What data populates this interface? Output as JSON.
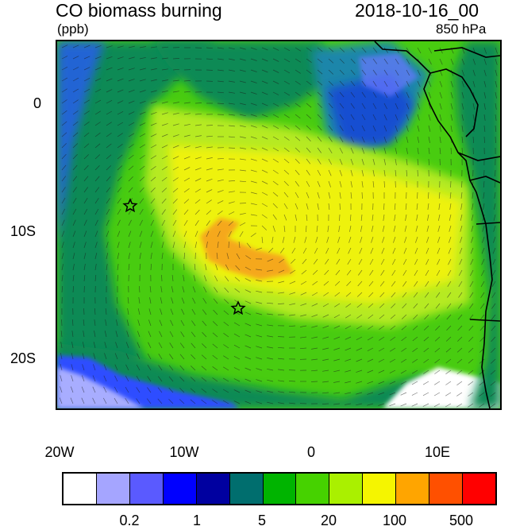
{
  "header": {
    "title": "CO biomass burning",
    "units": "(ppb)",
    "datetime": "2018-10-16_00",
    "level": "850 hPa"
  },
  "axes": {
    "y_ticks": [
      "0",
      "10S",
      "20S"
    ],
    "x_ticks": [
      "20W",
      "10W",
      "0",
      "10E"
    ]
  },
  "map": {
    "region": "South Atlantic / Southwest Africa",
    "markers": [
      {
        "type": "star",
        "lon": -14.4,
        "lat": -7.9
      },
      {
        "type": "star",
        "lon": -5.7,
        "lat": -15.9
      }
    ]
  },
  "colorbar": {
    "colors": [
      "#ffffff",
      "#a5a5ff",
      "#5a5aff",
      "#0000ff",
      "#0000a0",
      "#006e6e",
      "#00b400",
      "#46d200",
      "#aaf000",
      "#f5f500",
      "#ffa500",
      "#ff5000",
      "#ff0000"
    ],
    "labels": [
      "0.2",
      "1",
      "5",
      "20",
      "100",
      "500"
    ]
  }
}
